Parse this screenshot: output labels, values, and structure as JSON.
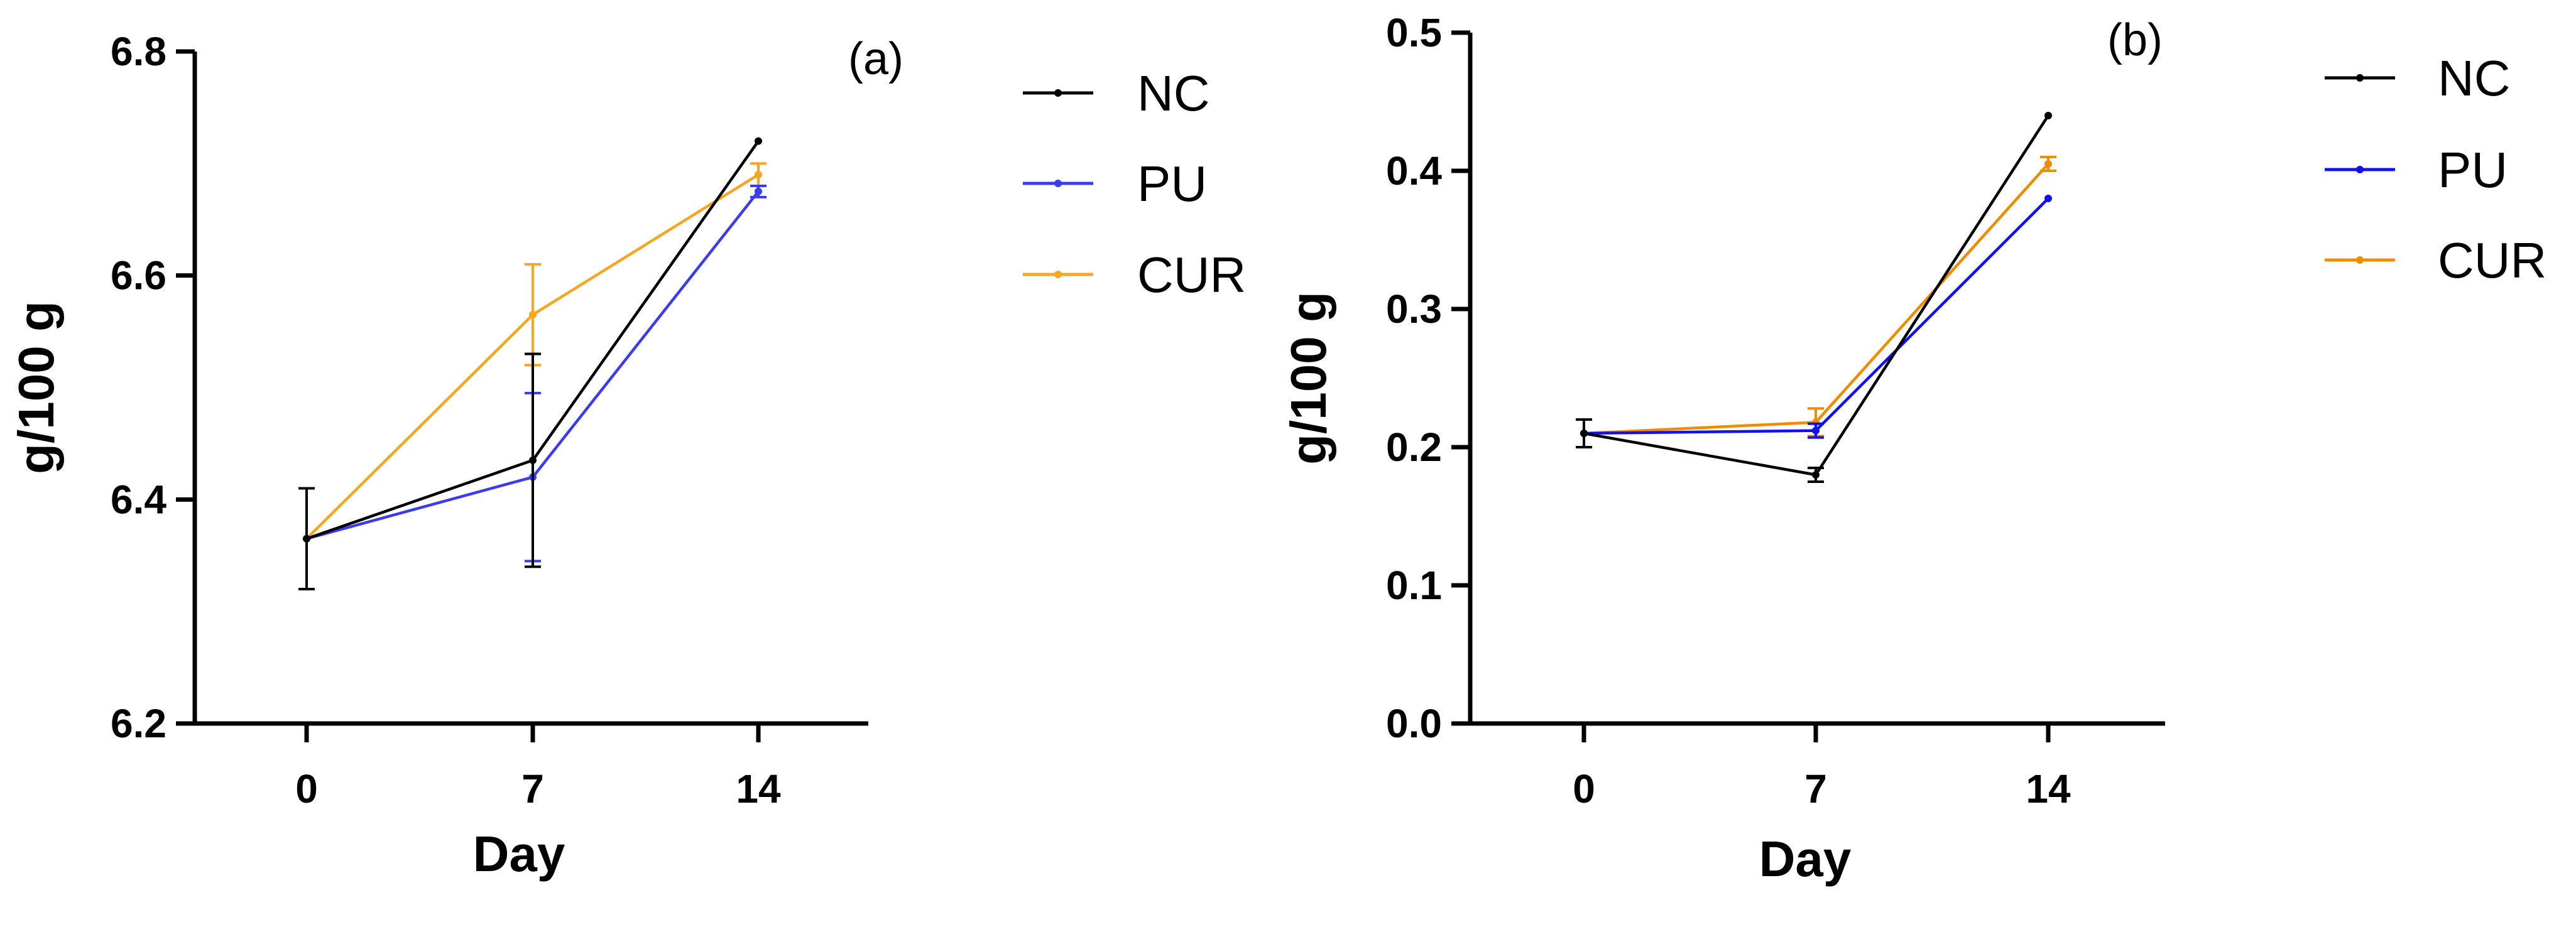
{
  "chart_data": [
    {
      "type": "line",
      "panel_label": "(a)",
      "xlabel": "Day",
      "ylabel": "g/100 g",
      "x": [
        0,
        7,
        14
      ],
      "x_ticks": [
        "0",
        "7",
        "14"
      ],
      "ylim": [
        6.2,
        6.8
      ],
      "y_ticks": [
        "6.2",
        "6.4",
        "6.6",
        "6.8"
      ],
      "y_tick_values": [
        6.2,
        6.4,
        6.6,
        6.8
      ],
      "grid": false,
      "legend": "right",
      "series": [
        {
          "name": "NC",
          "color": "#000000",
          "values": [
            6.365,
            6.435,
            6.72
          ],
          "errors": [
            0.045,
            0.095,
            0.0
          ]
        },
        {
          "name": "PU",
          "color": "#3b3bf0",
          "values": [
            6.365,
            6.42,
            6.675
          ],
          "errors": [
            0.0,
            0.075,
            0.005
          ]
        },
        {
          "name": "CUR",
          "color": "#f5a623",
          "values": [
            6.365,
            6.565,
            6.69
          ],
          "errors": [
            0.0,
            0.045,
            0.01
          ]
        }
      ]
    },
    {
      "type": "line",
      "panel_label": "(b)",
      "xlabel": "Day",
      "ylabel": "g/100 g",
      "x": [
        0,
        7,
        14
      ],
      "x_ticks": [
        "0",
        "7",
        "14"
      ],
      "ylim": [
        0.0,
        0.5
      ],
      "y_ticks": [
        "0.0",
        "0.1",
        "0.2",
        "0.3",
        "0.4",
        "0.5"
      ],
      "y_tick_values": [
        0.0,
        0.1,
        0.2,
        0.3,
        0.4,
        0.5
      ],
      "grid": false,
      "legend": "right",
      "series": [
        {
          "name": "NC",
          "color": "#000000",
          "values": [
            0.21,
            0.18,
            0.44
          ],
          "errors": [
            0.01,
            0.005,
            0.0
          ]
        },
        {
          "name": "PU",
          "color": "#1010f0",
          "values": [
            0.21,
            0.212,
            0.38
          ],
          "errors": [
            0.0,
            0.005,
            0.0
          ]
        },
        {
          "name": "CUR",
          "color": "#f08c00",
          "values": [
            0.21,
            0.218,
            0.405
          ],
          "errors": [
            0.0,
            0.01,
            0.005
          ]
        }
      ]
    }
  ]
}
